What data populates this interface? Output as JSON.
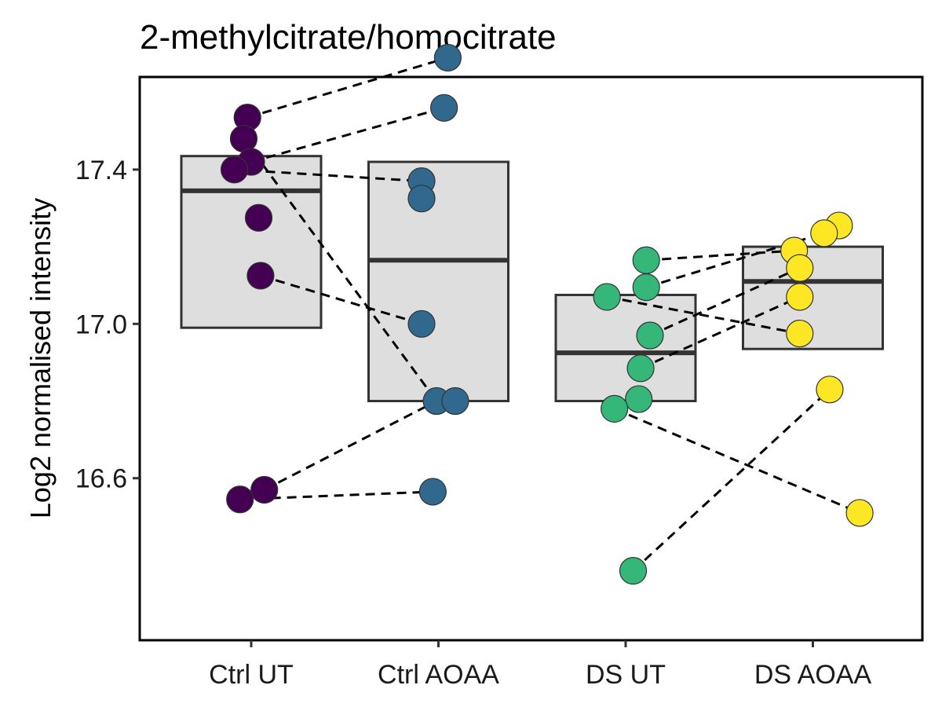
{
  "chart_data": {
    "type": "scatter",
    "subtype": "paired crossbar dot plot",
    "title": "2-methylcitrate/homocitrate",
    "xlabel": "",
    "ylabel": "Log2 normalised intensity",
    "ylim": [
      16.18,
      17.64
    ],
    "yticks": [
      16.6,
      17.0,
      17.4
    ],
    "ytick_labels": [
      "16.6",
      "17.0",
      "17.4"
    ],
    "grid": false,
    "legend": "none",
    "categories": [
      "Ctrl UT",
      "Ctrl AOAA",
      "DS UT",
      "DS AOAA"
    ],
    "series": [
      {
        "category": "Ctrl UT",
        "color": "#440154",
        "box": {
          "low": 16.99,
          "mid": 17.345,
          "high": 17.435
        },
        "points": [
          {
            "y": 17.535,
            "jitter": -0.02
          },
          {
            "y": 17.48,
            "jitter": -0.04
          },
          {
            "y": 17.42,
            "jitter": 0.0
          },
          {
            "y": 17.4,
            "jitter": -0.09
          },
          {
            "y": 17.275,
            "jitter": 0.04
          },
          {
            "y": 17.125,
            "jitter": 0.05
          },
          {
            "y": 16.57,
            "jitter": 0.07
          },
          {
            "y": 16.545,
            "jitter": -0.06
          }
        ]
      },
      {
        "category": "Ctrl AOAA",
        "color": "#31688E",
        "box": {
          "low": 16.8,
          "mid": 17.165,
          "high": 17.42
        },
        "points": [
          {
            "y": 17.69,
            "jitter": 0.05
          },
          {
            "y": 17.56,
            "jitter": 0.03
          },
          {
            "y": 17.37,
            "jitter": -0.09
          },
          {
            "y": 17.325,
            "jitter": -0.09
          },
          {
            "y": 17.0,
            "jitter": -0.09
          },
          {
            "y": 16.8,
            "jitter": -0.01
          },
          {
            "y": 16.8,
            "jitter": 0.09
          },
          {
            "y": 16.565,
            "jitter": -0.03
          }
        ]
      },
      {
        "category": "DS UT",
        "color": "#35B779",
        "box": {
          "low": 16.8,
          "mid": 16.925,
          "high": 17.075
        },
        "points": [
          {
            "y": 17.165,
            "jitter": 0.11
          },
          {
            "y": 17.095,
            "jitter": 0.11
          },
          {
            "y": 17.07,
            "jitter": -0.1
          },
          {
            "y": 16.97,
            "jitter": 0.13
          },
          {
            "y": 16.885,
            "jitter": 0.08
          },
          {
            "y": 16.805,
            "jitter": 0.07
          },
          {
            "y": 16.78,
            "jitter": -0.06
          },
          {
            "y": 16.36,
            "jitter": 0.04
          }
        ]
      },
      {
        "category": "DS AOAA",
        "color": "#FDE725",
        "box": {
          "low": 16.935,
          "mid": 17.11,
          "high": 17.2
        },
        "points": [
          {
            "y": 17.255,
            "jitter": 0.14
          },
          {
            "y": 17.235,
            "jitter": 0.06
          },
          {
            "y": 17.19,
            "jitter": -0.1
          },
          {
            "y": 17.145,
            "jitter": -0.07
          },
          {
            "y": 17.07,
            "jitter": -0.07
          },
          {
            "y": 16.975,
            "jitter": -0.07
          },
          {
            "y": 16.83,
            "jitter": 0.09
          },
          {
            "y": 16.51,
            "jitter": 0.25
          }
        ]
      }
    ],
    "pairs": [
      {
        "from": [
          0,
          17.535
        ],
        "to": [
          1,
          17.69
        ]
      },
      {
        "from": [
          0,
          17.42
        ],
        "to": [
          1,
          17.56
        ]
      },
      {
        "from": [
          0,
          17.4
        ],
        "to": [
          1,
          17.37
        ]
      },
      {
        "from": [
          0,
          17.48
        ],
        "to": [
          1,
          16.8
        ]
      },
      {
        "from": [
          0,
          17.125
        ],
        "to": [
          1,
          17.0
        ]
      },
      {
        "from": [
          0,
          16.57
        ],
        "to": [
          1,
          16.8
        ]
      },
      {
        "from": [
          0,
          16.545
        ],
        "to": [
          1,
          16.565
        ]
      },
      {
        "from": [
          2,
          17.165
        ],
        "to": [
          3,
          17.19
        ]
      },
      {
        "from": [
          2,
          17.095
        ],
        "to": [
          3,
          17.235
        ]
      },
      {
        "from": [
          2,
          16.97
        ],
        "to": [
          3,
          17.145
        ]
      },
      {
        "from": [
          2,
          16.885
        ],
        "to": [
          3,
          17.07
        ]
      },
      {
        "from": [
          2,
          17.07
        ],
        "to": [
          3,
          16.975
        ]
      },
      {
        "from": [
          2,
          16.78
        ],
        "to": [
          3,
          16.51
        ]
      },
      {
        "from": [
          2,
          16.36
        ],
        "to": [
          3,
          16.83
        ]
      }
    ]
  }
}
